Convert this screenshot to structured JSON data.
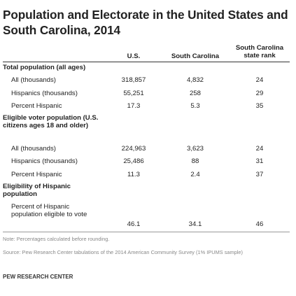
{
  "title": "Population and Electorate in the United States and South Carolina, 2014",
  "columns": {
    "us": "U.S.",
    "state": "South Carolina",
    "rank": "South Carolina state rank"
  },
  "sections": [
    {
      "heading": "Total population (all ages)",
      "rows": [
        {
          "label": "All (thousands)",
          "us": "318,857",
          "state": "4,832",
          "rank": "24"
        },
        {
          "label": "Hispanics (thousands)",
          "us": "55,251",
          "state": "258",
          "rank": "29"
        },
        {
          "label": "Percent Hispanic",
          "us": "17.3",
          "state": "5.3",
          "rank": "35"
        }
      ]
    },
    {
      "heading": "Eligible voter population (U.S. citizens ages 18 and older)",
      "rows": [
        {
          "label": "All (thousands)",
          "us": "224,963",
          "state": "3,623",
          "rank": "24"
        },
        {
          "label": "Hispanics (thousands)",
          "us": "25,486",
          "state": "88",
          "rank": "31"
        },
        {
          "label": "Percent Hispanic",
          "us": "11.3",
          "state": "2.4",
          "rank": "37"
        }
      ]
    },
    {
      "heading": "Eligibility of Hispanic population",
      "rows": [
        {
          "label": "Percent of Hispanic population eligible to vote",
          "us": "46.1",
          "state": "34.1",
          "rank": "46"
        }
      ]
    }
  ],
  "note": "Note: Percentages calculated before rounding.",
  "source": "Source: Pew Research Center tabulations of the 2014 American Community Survey (1% IPUMS sample)",
  "brand": "PEW RESEARCH CENTER"
}
